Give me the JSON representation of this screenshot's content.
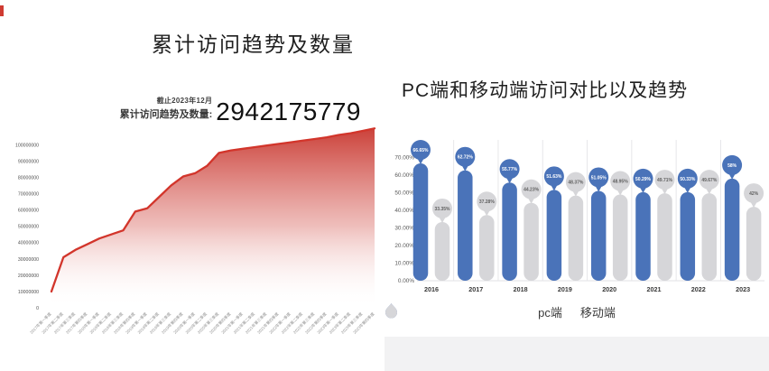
{
  "page": {
    "background": "#ffffff",
    "corner_mark_color": "#cf3b32"
  },
  "left_panel": {
    "title": "累计访问趋势及数量",
    "annotation": {
      "date_note": "截止2023年12月",
      "label": "累计访问趋势及数量:",
      "value": "2942175779"
    }
  },
  "right_panel": {
    "title": "PC端和移动端访问对比以及趋势",
    "legend": [
      {
        "label": "pc端",
        "color": "#4a73b9"
      },
      {
        "label": "移动端",
        "color": "#d6d6d9"
      }
    ]
  },
  "chart_data": [
    {
      "type": "area",
      "title": "累计访问趋势及数量",
      "annotation": "截止2023年12月 累计访问趋势及数量: 2942175779",
      "x": [
        "2017年第一季度",
        "2017年第二季度",
        "2017年第三季度",
        "2017年第四季度",
        "2018年第一季度",
        "2018年第二季度",
        "2018年第三季度",
        "2018年第四季度",
        "2019年第一季度",
        "2019年第二季度",
        "2019年第三季度",
        "2019年第四季度",
        "2020年第一季度",
        "2020年第二季度",
        "2020年第三季度",
        "2020年第四季度",
        "2021年第一季度",
        "2021年第二季度",
        "2021年第三季度",
        "2021年第四季度",
        "2022年第一季度",
        "2022年第二季度",
        "2022年第三季度",
        "2022年第四季度",
        "2023年第一季度",
        "2023年第二季度",
        "2023年第三季度",
        "2023年第四季度"
      ],
      "values": [
        10000000,
        31000000,
        35500000,
        39000000,
        42500000,
        45000000,
        47500000,
        59000000,
        61000000,
        68000000,
        75000000,
        80500000,
        82500000,
        87000000,
        95000000,
        96500000,
        97500000,
        98500000,
        99500000,
        100500000,
        101500000,
        102500000,
        103500000,
        104500000,
        106000000,
        107000000,
        108500000,
        110000000
      ],
      "ylim": [
        0,
        110000000
      ],
      "y_tick_labels": [
        "0",
        "10000000",
        "20000000",
        "30000000",
        "40000000",
        "50000000",
        "60000000",
        "70000000",
        "80000000",
        "90000000",
        "100000000"
      ],
      "grid": false,
      "line_color": "#d2352b",
      "fill_color": "#c8362e"
    },
    {
      "type": "bar",
      "subtype": "lollipop",
      "title": "PC端和移动端访问对比以及趋势",
      "categories": [
        "2016",
        "2017",
        "2018",
        "2019",
        "2020",
        "2021",
        "2022",
        "2023"
      ],
      "series": [
        {
          "name": "pc端",
          "color": "#4a73b9",
          "label_color": "#ffffff",
          "values": [
            66.65,
            62.72,
            55.77,
            51.63,
            51.05,
            50.29,
            50.33,
            58
          ],
          "labels": [
            "66.65%",
            "62.72%",
            "55.77%",
            "51.63%",
            "51.05%",
            "50.29%",
            "50.33%",
            "58%"
          ]
        },
        {
          "name": "移动端",
          "color": "#d6d6d9",
          "label_color": "#606060",
          "values": [
            33.35,
            37.28,
            44.23,
            48.37,
            48.95,
            49.71,
            49.67,
            42
          ],
          "labels": [
            "33.35%",
            "37.28%",
            "44.23%",
            "48.37%",
            "48.95%",
            "49.71%",
            "49.67%",
            "42%"
          ]
        }
      ],
      "ylim": [
        0,
        70
      ],
      "y_tick_labels": [
        "0.00%",
        "10.00%",
        "20.00%",
        "30.00%",
        "40.00%",
        "50.00%",
        "60.00%",
        "70.00%"
      ],
      "grid": false,
      "legend_position": "bottom"
    }
  ]
}
